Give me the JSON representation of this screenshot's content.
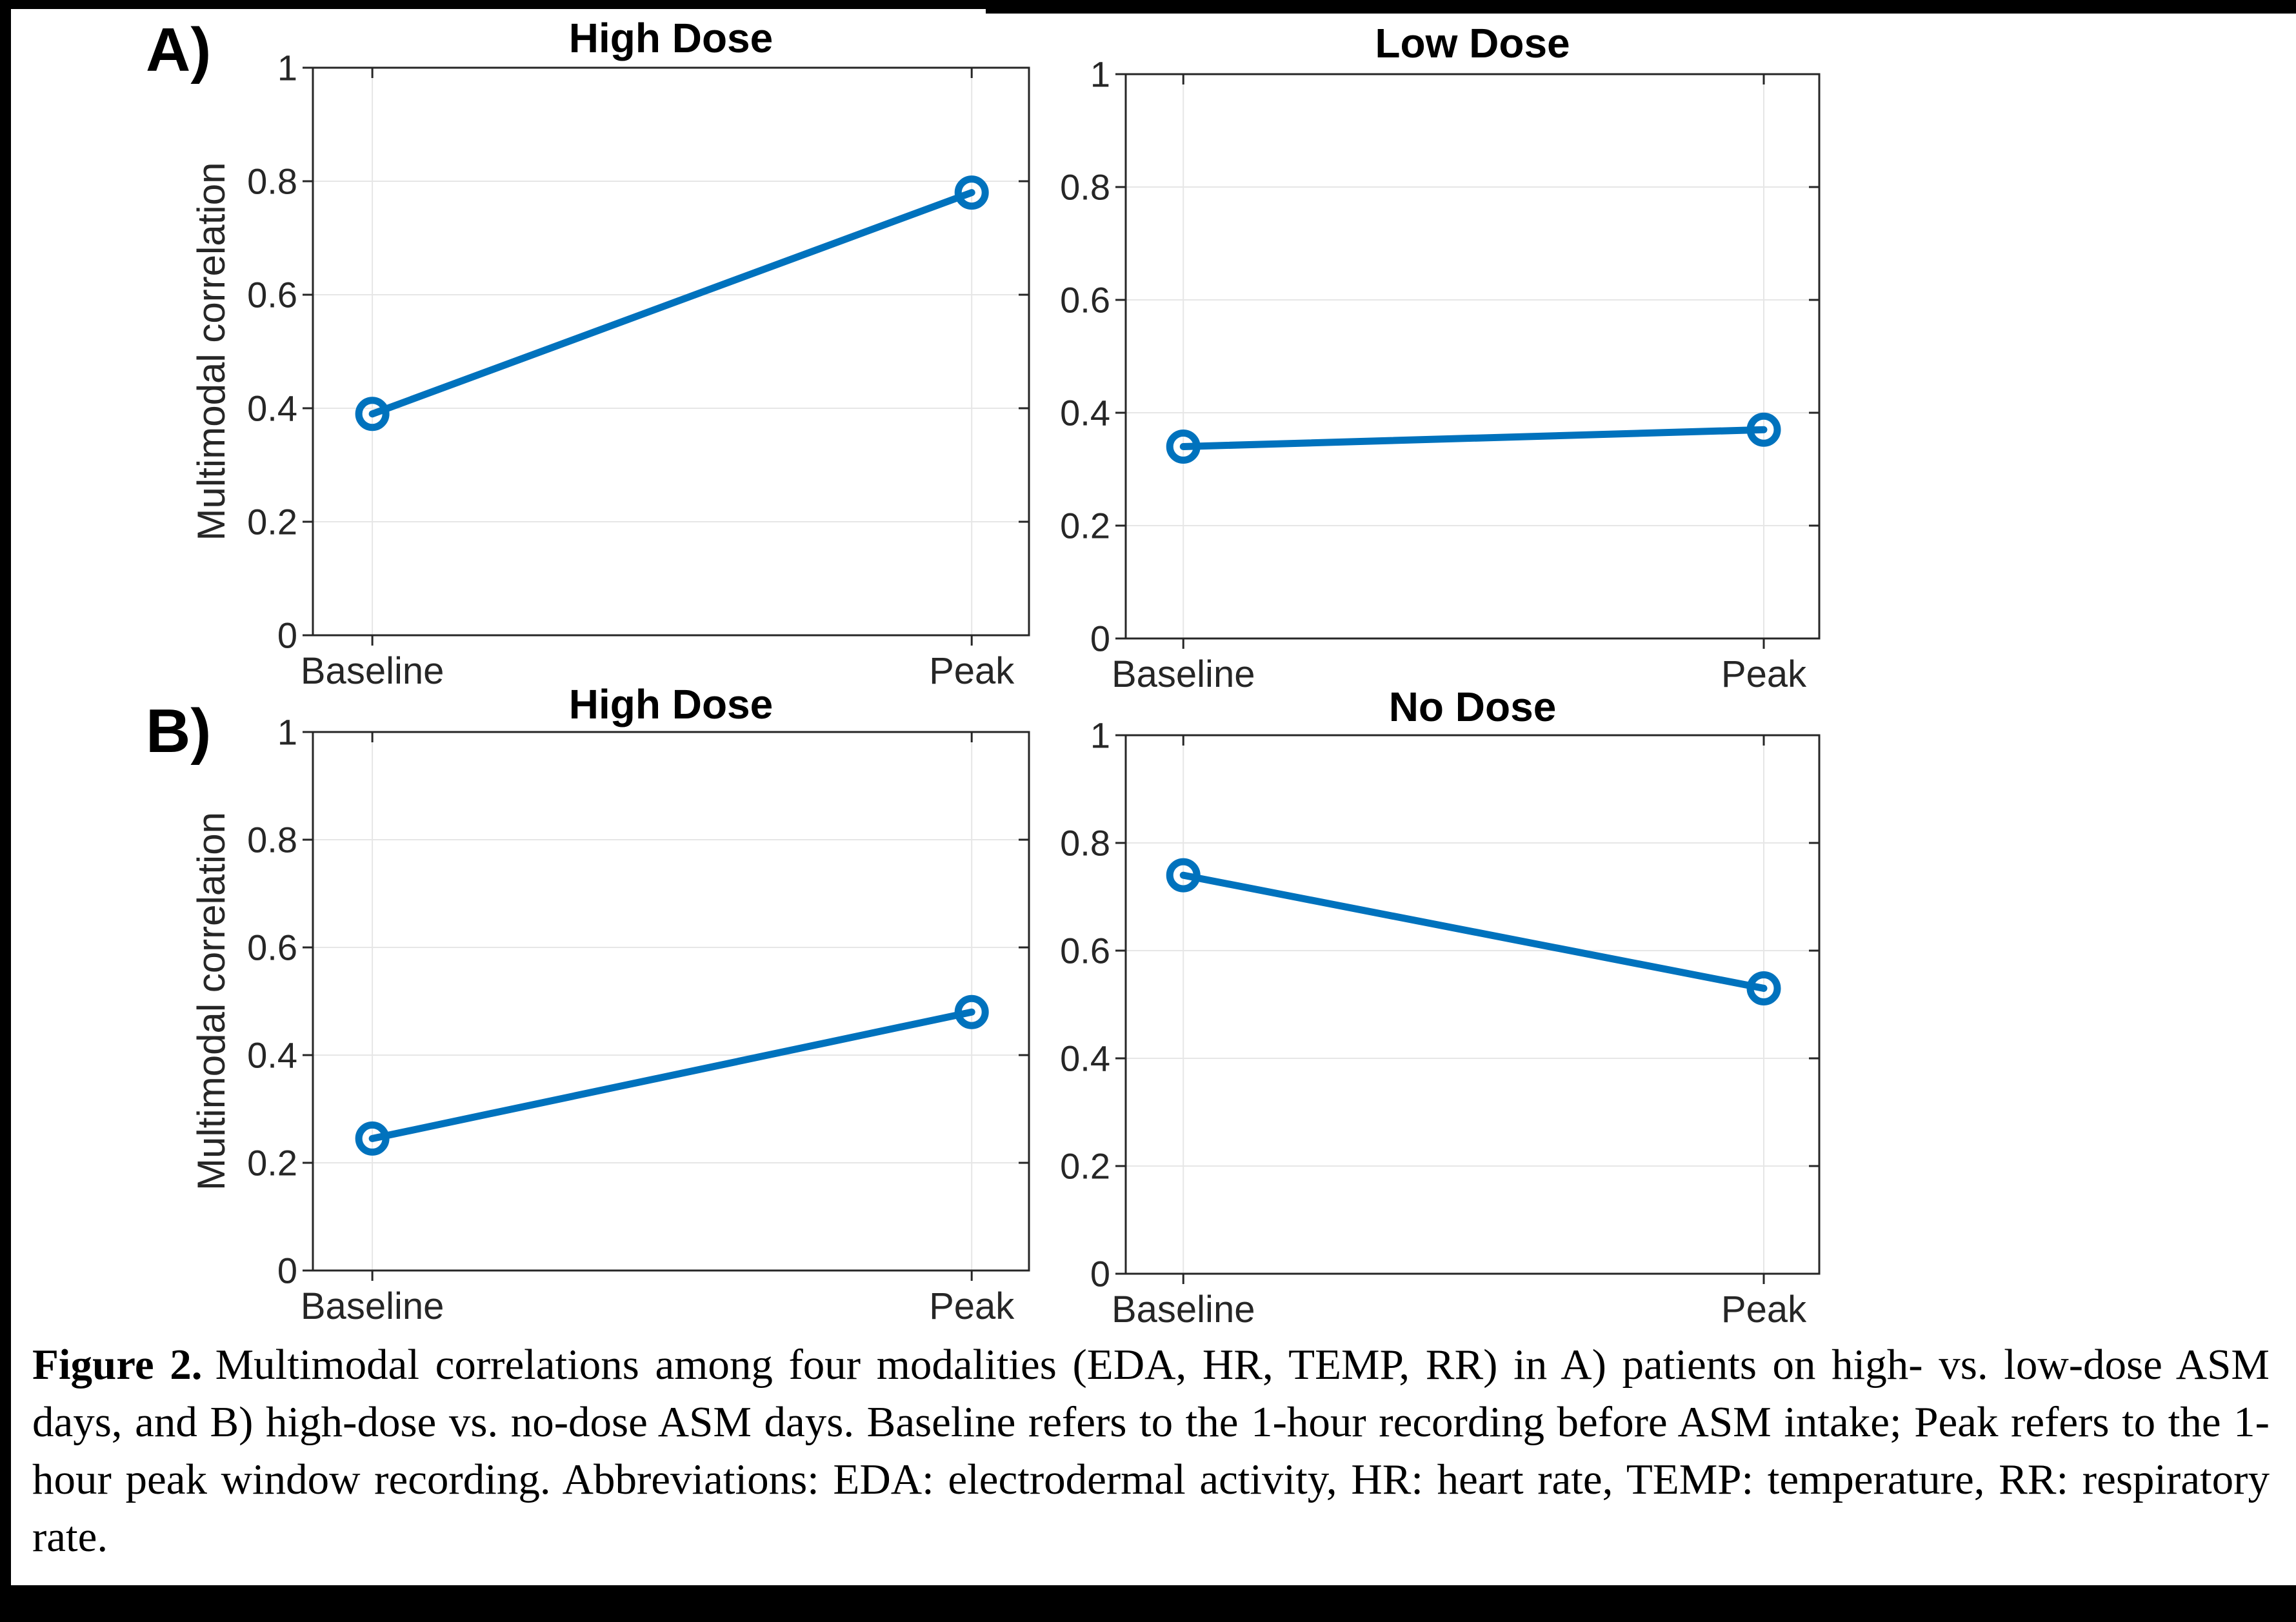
{
  "figure": {
    "panels": [
      {
        "label": "A)"
      },
      {
        "label": "B)"
      }
    ],
    "caption": {
      "figure_label": "Figure 2.",
      "text": "Multimodal correlations among four modalities (EDA, HR, TEMP, RR) in A) patients on high- vs. low-dose ASM days, and B) high-dose vs. no-dose ASM days. Baseline refers to the 1-hour recording before ASM intake; Peak refers to the 1-hour peak window recording. Abbreviations: EDA: electrodermal activity, HR: heart rate, TEMP: temperature, RR: respiratory rate."
    }
  },
  "colors": {
    "line": "#0072BD",
    "axis": "#262626",
    "grid": "#e6e6e6",
    "title": "#000000",
    "tick_label": "#262626",
    "frame": "#000000"
  },
  "chart_data": [
    {
      "type": "line",
      "panel": "A",
      "position": "left",
      "title": "High Dose",
      "ylabel": "Multimodal correlation",
      "xlabel": "",
      "categories": [
        "Baseline",
        "Peak"
      ],
      "values": [
        0.39,
        0.78
      ],
      "ylim": [
        0,
        1
      ],
      "yticks": [
        0,
        0.2,
        0.4,
        0.6,
        0.8,
        1
      ],
      "grid": true,
      "legend": false,
      "marker": "open-circle"
    },
    {
      "type": "line",
      "panel": "A",
      "position": "right",
      "title": "Low Dose",
      "ylabel": "",
      "xlabel": "",
      "categories": [
        "Baseline",
        "Peak"
      ],
      "values": [
        0.34,
        0.37
      ],
      "ylim": [
        0,
        1
      ],
      "yticks": [
        0,
        0.2,
        0.4,
        0.6,
        0.8,
        1
      ],
      "grid": true,
      "legend": false,
      "marker": "open-circle"
    },
    {
      "type": "line",
      "panel": "B",
      "position": "left",
      "title": "High Dose",
      "ylabel": "Multimodal correlation",
      "xlabel": "",
      "categories": [
        "Baseline",
        "Peak"
      ],
      "values": [
        0.245,
        0.48
      ],
      "ylim": [
        0,
        1
      ],
      "yticks": [
        0,
        0.2,
        0.4,
        0.6,
        0.8,
        1
      ],
      "grid": true,
      "legend": false,
      "marker": "open-circle"
    },
    {
      "type": "line",
      "panel": "B",
      "position": "right",
      "title": "No Dose",
      "ylabel": "",
      "xlabel": "",
      "categories": [
        "Baseline",
        "Peak"
      ],
      "values": [
        0.74,
        0.53
      ],
      "ylim": [
        0,
        1
      ],
      "yticks": [
        0,
        0.2,
        0.4,
        0.6,
        0.8,
        1
      ],
      "grid": true,
      "legend": false,
      "marker": "open-circle"
    }
  ]
}
